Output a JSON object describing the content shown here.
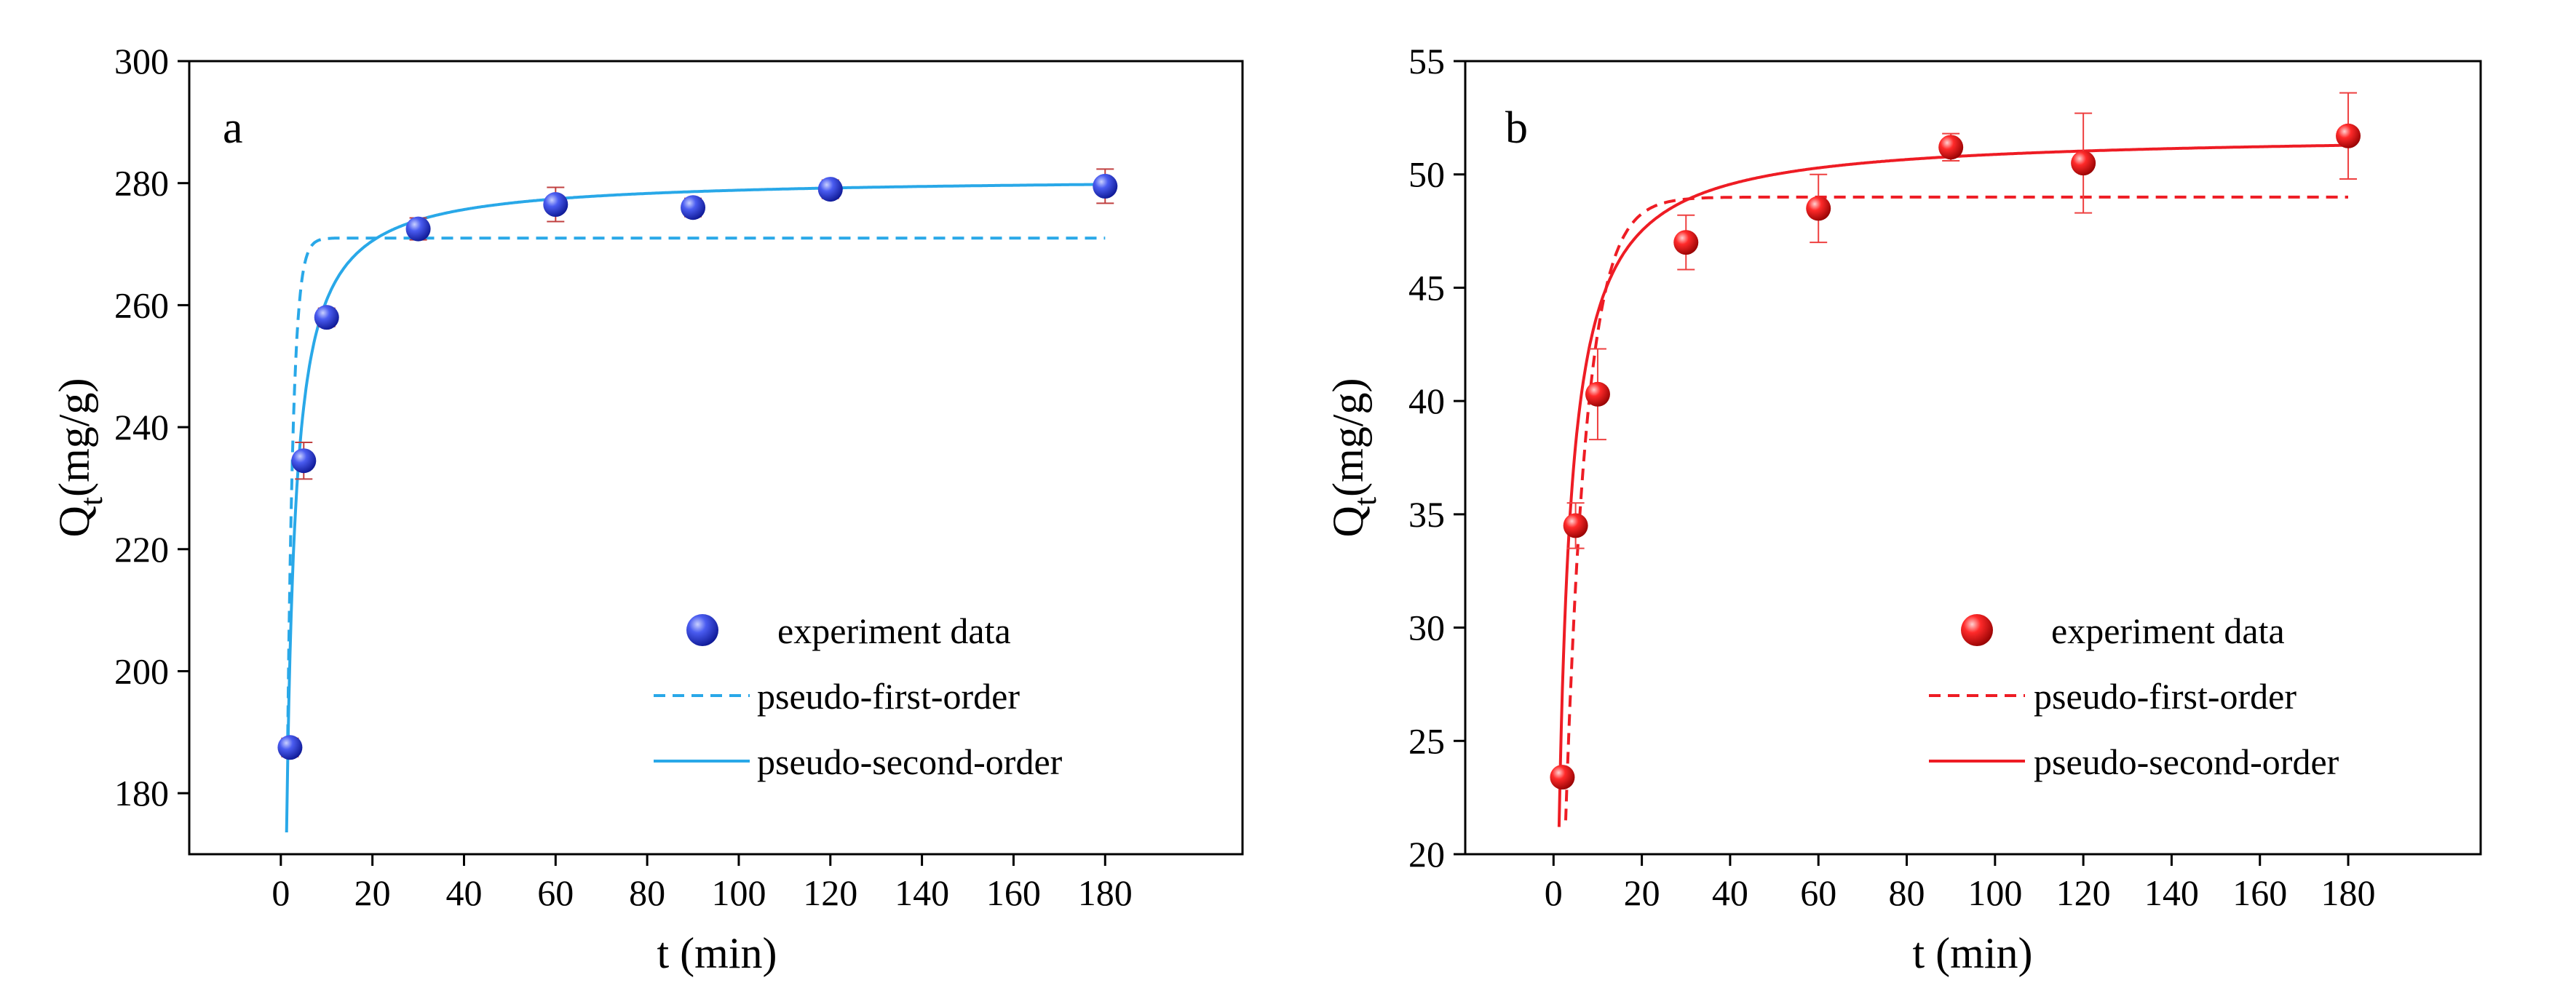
{
  "chart_data": [
    {
      "type": "scatter",
      "panel_label": "a",
      "xlabel": "t (min)",
      "ylabel_main": "Q",
      "ylabel_sub": "t",
      "ylabel_unit": "(mg/g)",
      "xlim": [
        -20,
        210
      ],
      "ylim": [
        170,
        300
      ],
      "xticks": [
        0,
        20,
        40,
        60,
        80,
        100,
        120,
        140,
        160,
        180
      ],
      "yticks": [
        180,
        200,
        220,
        240,
        260,
        280,
        300
      ],
      "legend_position": "bottom-right",
      "colors": {
        "marker": "#1f2fd6",
        "marker_light": "#9aa8ff",
        "fit": "#29a8e8",
        "error": "#c04040"
      },
      "experiment": {
        "name": "experiment data",
        "x": [
          2,
          5,
          10,
          30,
          60,
          90,
          120,
          180
        ],
        "y": [
          187.5,
          234.5,
          258,
          272.5,
          276.5,
          276,
          279,
          279.5
        ],
        "err": [
          1.5,
          3,
          1.5,
          1.8,
          2.8,
          1.5,
          1.5,
          2.8
        ]
      },
      "pfo": {
        "name": "pseudo-first-order",
        "qe": 271,
        "k1": 0.8
      },
      "pso": {
        "name": "pseudo-second-order",
        "qe": 281,
        "k2": 0.0046
      }
    },
    {
      "type": "scatter",
      "panel_label": "b",
      "xlabel": "t (min)",
      "ylabel_main": "Q",
      "ylabel_sub": "t",
      "ylabel_unit": "(mg/g)",
      "xlim": [
        -20,
        210
      ],
      "ylim": [
        20,
        55
      ],
      "xticks": [
        0,
        20,
        40,
        60,
        80,
        100,
        120,
        140,
        160,
        180
      ],
      "yticks": [
        20,
        25,
        30,
        35,
        40,
        45,
        50,
        55
      ],
      "legend_position": "bottom-right",
      "colors": {
        "marker": "#e00000",
        "marker_light": "#ff9a9a",
        "fit": "#ee1c24",
        "error": "#ee4040"
      },
      "experiment": {
        "name": "experiment data",
        "x": [
          2,
          5,
          10,
          30,
          60,
          90,
          120,
          180
        ],
        "y": [
          23.4,
          34.5,
          40.3,
          47,
          48.5,
          51.2,
          50.5,
          51.7
        ],
        "err": [
          0.3,
          1.0,
          2.0,
          1.2,
          1.5,
          0.6,
          2.2,
          1.9
        ]
      },
      "pfo": {
        "name": "pseudo-first-order",
        "qe": 49,
        "k1": 0.21
      },
      "pso": {
        "name": "pseudo-second-order",
        "qe": 51.8,
        "k2": 0.0107
      }
    }
  ]
}
